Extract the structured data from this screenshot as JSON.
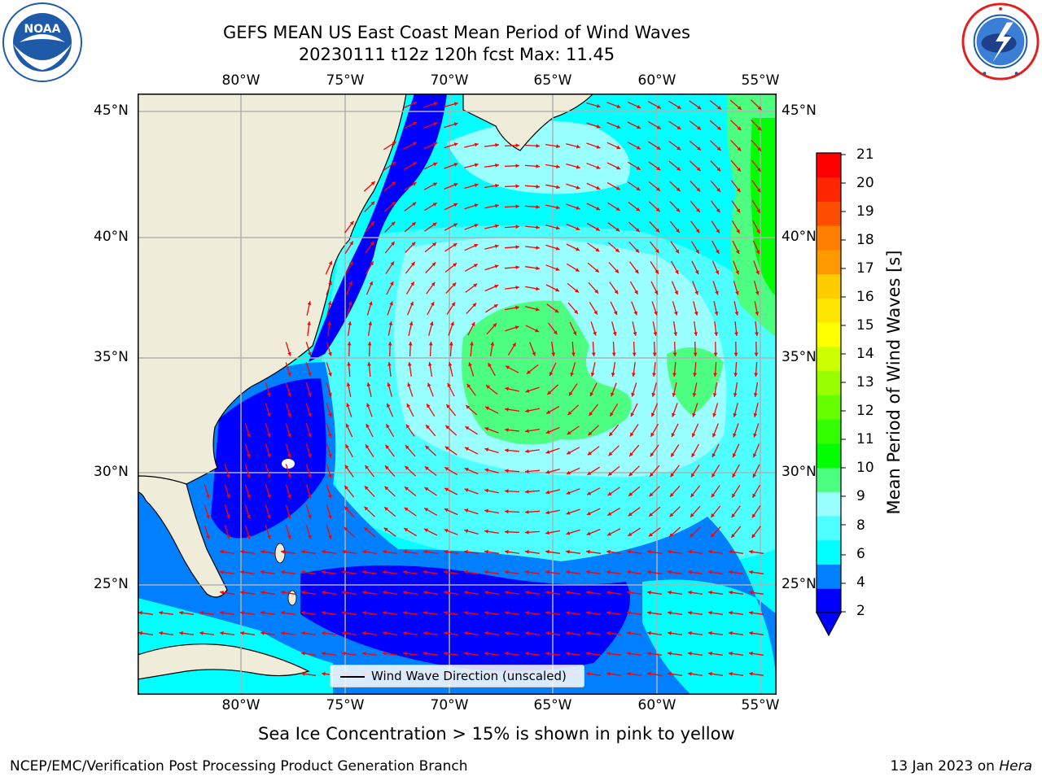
{
  "header": {
    "title_line1": "GEFS MEAN US East Coast Mean Period of Wind Waves",
    "title_line2": "20230111 t12z 120h fcst   Max: 11.45"
  },
  "logos": {
    "left": {
      "name": "noaa-logo",
      "text": "NOAA",
      "ring_text": "NATIONAL OCEANIC AND ATMOSPHERIC ADMINISTRATION · U.S. DEPARTMENT OF COMMERCE",
      "color": "#1e5aa8"
    },
    "right": {
      "name": "nws-logo",
      "ring_text": "NATIONAL WEATHER SERVICE",
      "color": "#e02020"
    }
  },
  "map": {
    "lon_labels": [
      "80°W",
      "75°W",
      "70°W",
      "65°W",
      "60°W",
      "55°W"
    ],
    "lat_labels": [
      "45°N",
      "40°N",
      "35°N",
      "30°N",
      "25°N"
    ],
    "legend_text": "Wind Wave Direction (unscaled)",
    "land_color": "#efedd9",
    "arrow_color": "#ff0000"
  },
  "colorbar": {
    "title": "Mean Period of Wind Waves [s]",
    "tick_labels": [
      "21",
      "20",
      "19",
      "18",
      "17",
      "16",
      "15",
      "14",
      "13",
      "12",
      "11",
      "10",
      "9",
      "8",
      "6",
      "4",
      "2"
    ],
    "colors": [
      "#0000ff",
      "#0080ff",
      "#00ffff",
      "#4dffff",
      "#99ffff",
      "#4dff80",
      "#00ff00",
      "#33ff00",
      "#66ff00",
      "#99ff00",
      "#ccff00",
      "#ffff00",
      "#ffe600",
      "#ffcc00",
      "#ff9900",
      "#ff8000",
      "#ff4d00",
      "#ff2600",
      "#ff0000"
    ]
  },
  "caption": "Sea Ice Concentration > 15% is shown in pink to yellow",
  "footer": {
    "left": "NCEP/EMC/Verification Post Processing Product Generation Branch",
    "right_prefix": "13 Jan 2023 on ",
    "right_host": "Hera"
  }
}
